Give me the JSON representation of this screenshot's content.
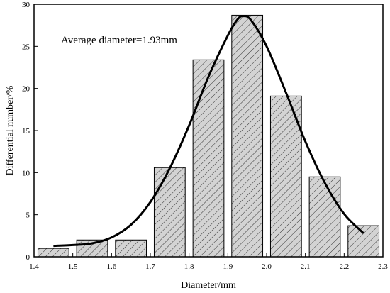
{
  "chart_data": {
    "type": "bar",
    "title": "",
    "annotation": "Average diameter=1.93mm",
    "xlabel": "Diameter/mm",
    "ylabel": "Differential number/%",
    "xlim": [
      1.4,
      2.3
    ],
    "ylim": [
      0,
      30
    ],
    "x_ticks": [
      "1.4",
      "1.5",
      "1.6",
      "1.7",
      "1.8",
      "1.9",
      "2.0",
      "2.1",
      "2.2",
      "2.3"
    ],
    "y_ticks": [
      "0",
      "5",
      "10",
      "15",
      "20",
      "25",
      "30"
    ],
    "bar_width": 0.08,
    "bars": [
      {
        "x": 1.45,
        "value": 1.0
      },
      {
        "x": 1.55,
        "value": 2.0
      },
      {
        "x": 1.65,
        "value": 2.0
      },
      {
        "x": 1.75,
        "value": 10.6
      },
      {
        "x": 1.85,
        "value": 23.4
      },
      {
        "x": 1.95,
        "value": 28.7
      },
      {
        "x": 2.05,
        "value": 19.1
      },
      {
        "x": 2.15,
        "value": 9.5
      },
      {
        "x": 2.25,
        "value": 3.7
      }
    ],
    "fit_curve": {
      "type": "line",
      "x": [
        1.45,
        1.5,
        1.55,
        1.6,
        1.65,
        1.7,
        1.75,
        1.8,
        1.85,
        1.9,
        1.925,
        1.94,
        1.96,
        2.0,
        2.05,
        2.1,
        2.15,
        2.2,
        2.25
      ],
      "y": [
        1.3,
        1.4,
        1.6,
        2.3,
        3.8,
        6.5,
        10.5,
        15.6,
        21.4,
        26.3,
        28.2,
        28.6,
        28.1,
        25.0,
        19.5,
        13.7,
        8.8,
        5.1,
        2.8
      ]
    },
    "bar_fill": "#d3d3d3",
    "bar_hatch": "diagonal",
    "grid": false,
    "legend": "none"
  }
}
